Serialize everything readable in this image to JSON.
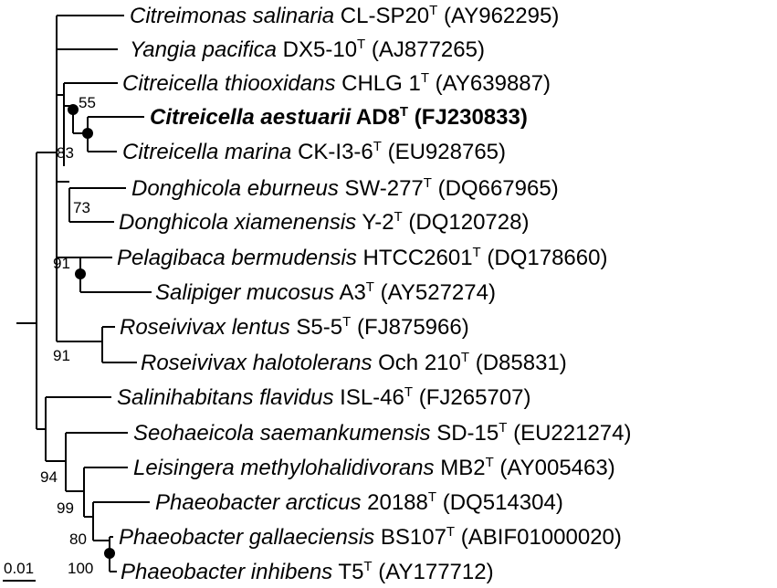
{
  "taxa": [
    {
      "id": "t1",
      "genus": "Citreimonas salinaria",
      "strain": "CL-SP20",
      "type_mark": "T",
      "accession": "(AY962295)",
      "bold": false
    },
    {
      "id": "t2",
      "genus": "Yangia pacifica",
      "strain": "DX5-10",
      "type_mark": "T",
      "accession": "(AJ877265)",
      "bold": false
    },
    {
      "id": "t3",
      "genus": "Citreicella thiooxidans",
      "strain": "CHLG 1",
      "type_mark": "T",
      "accession": "(AY639887)",
      "bold": false
    },
    {
      "id": "t4",
      "genus": "Citreicella aestuarii",
      "strain": "AD8",
      "type_mark": "T",
      "accession": "(FJ230833)",
      "bold": true
    },
    {
      "id": "t5",
      "genus": "Citreicella marina",
      "strain": "CK-I3-6",
      "type_mark": "T",
      "accession": "(EU928765)",
      "bold": false
    },
    {
      "id": "t6",
      "genus": "Donghicola eburneus",
      "strain": "SW-277",
      "type_mark": "T",
      "accession": "(DQ667965)",
      "bold": false
    },
    {
      "id": "t7",
      "genus": "Donghicola xiamenensis",
      "strain": "Y-2",
      "type_mark": "T",
      "accession": "(DQ120728)",
      "bold": false
    },
    {
      "id": "t8",
      "genus": "Pelagibaca bermudensis",
      "strain": "HTCC2601",
      "type_mark": "T",
      "accession": "(DQ178660)",
      "bold": false
    },
    {
      "id": "t9",
      "genus": "Salipiger mucosus",
      "strain": "A3",
      "type_mark": "T",
      "accession": "(AY527274)",
      "bold": false
    },
    {
      "id": "t10",
      "genus": "Roseivivax lentus",
      "strain": "S5-5",
      "type_mark": "T",
      "accession": "(FJ875966)",
      "bold": false
    },
    {
      "id": "t11",
      "genus": "Roseivivax halotolerans",
      "strain": "Och 210",
      "type_mark": "T",
      "accession": "(D85831)",
      "bold": false
    },
    {
      "id": "t12",
      "genus": "Salinihabitans flavidus",
      "strain": "ISL-46",
      "type_mark": "T",
      "accession": "(FJ265707)",
      "bold": false
    },
    {
      "id": "t13",
      "genus": "Seohaeicola saemankumensis",
      "strain": "SD-15",
      "type_mark": "T",
      "accession": "(EU221274)",
      "bold": false
    },
    {
      "id": "t14",
      "genus": "Leisingera methylohalidivorans",
      "strain": "MB2",
      "type_mark": "T",
      "accession": "(AY005463)",
      "bold": false
    },
    {
      "id": "t15",
      "genus": "Phaeobacter arcticus",
      "strain": "20188",
      "type_mark": "T",
      "accession": "(DQ514304)",
      "bold": false
    },
    {
      "id": "t16",
      "genus": "Phaeobacter gallaeciensis",
      "strain": "BS107",
      "type_mark": "T",
      "accession": "(ABIF01000020)",
      "bold": false
    },
    {
      "id": "t17",
      "genus": "Phaeobacter inhibens",
      "strain": "T5",
      "type_mark": "T",
      "accession": "(AY177712)",
      "bold": false
    }
  ],
  "bootstrap_values": [
    "55",
    "83",
    "73",
    "91",
    "91",
    "94",
    "99",
    "80",
    "100"
  ],
  "scale_bar": {
    "label": "0.01"
  }
}
